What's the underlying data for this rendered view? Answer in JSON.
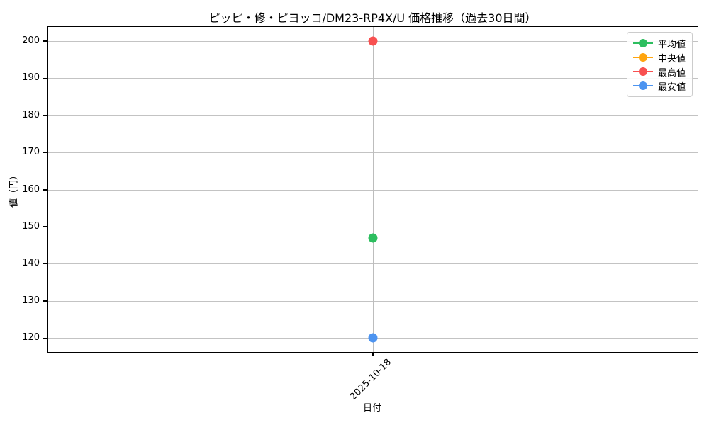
{
  "chart_data": {
    "type": "line",
    "title": "ピッピ・修・ピヨッコ/DM23-RP4X/U 価格推移（過去30日間）",
    "xlabel": "日付",
    "ylabel": "値（円）",
    "x": [
      "2025-10-18"
    ],
    "series": [
      {
        "name": "平均値",
        "color": "#2dbe5f",
        "values": [
          147
        ]
      },
      {
        "name": "中央値",
        "color": "#ffa50f",
        "values": [
          null
        ]
      },
      {
        "name": "最高値",
        "color": "#f85050",
        "values": [
          200
        ]
      },
      {
        "name": "最安値",
        "color": "#4d94f0",
        "values": [
          120
        ]
      }
    ],
    "ylim": [
      116,
      204
    ],
    "yticks": [
      120,
      130,
      140,
      150,
      160,
      170,
      180,
      190,
      200
    ],
    "grid": true,
    "grid_color": "#c3c3c3",
    "legend_position": "upper right",
    "x_tick_rotation": 45
  }
}
